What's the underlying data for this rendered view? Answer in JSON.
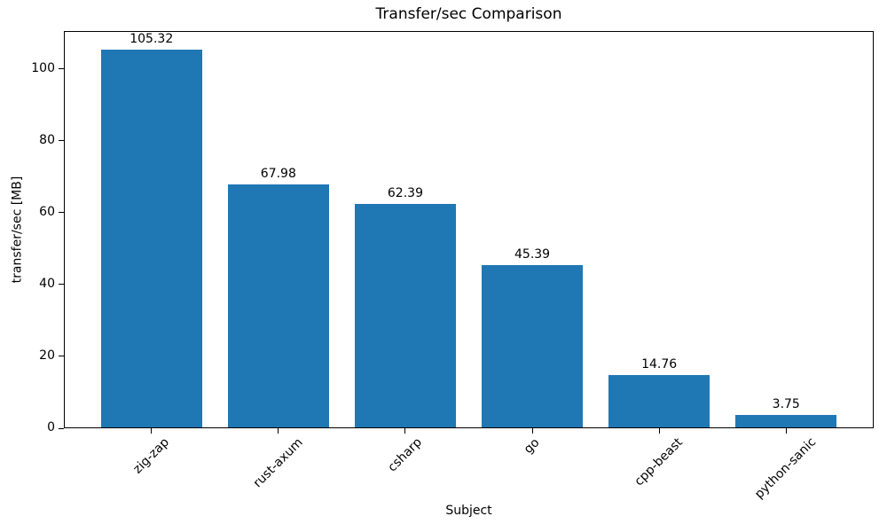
{
  "chart_data": {
    "type": "bar",
    "title": "Transfer/sec Comparison",
    "xlabel": "Subject",
    "ylabel": "transfer/sec [MB]",
    "categories": [
      "zig-zap",
      "rust-axum",
      "csharp",
      "go",
      "cpp-beast",
      "python-sanic"
    ],
    "values": [
      105.32,
      67.98,
      62.39,
      45.39,
      14.76,
      3.75
    ],
    "value_labels": [
      "105.32",
      "67.98",
      "62.39",
      "45.39",
      "14.76",
      "3.75"
    ],
    "yticks": [
      0,
      20,
      40,
      60,
      80,
      100
    ],
    "ytick_labels": [
      "0",
      "20",
      "40",
      "60",
      "80",
      "100"
    ],
    "ylim": [
      0,
      110.6
    ],
    "bar_color": "#1f77b4",
    "text_color": "#000000",
    "axis_color": "#000000",
    "grid": false,
    "legend_position": "none",
    "xtick_rotation_deg": 45
  }
}
